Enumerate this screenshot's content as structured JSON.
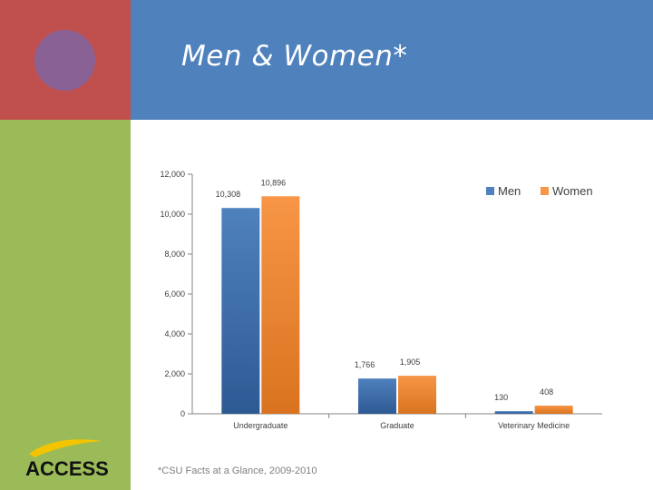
{
  "slide": {
    "title": "Men & Women*",
    "footnote": "*CSU Facts at a Glance, 2009-2010",
    "logo_text": "ACCESS"
  },
  "colors": {
    "red_block": "#c0504d",
    "blue_block": "#4f81bd",
    "green_block": "#9bbb59",
    "circle": "#8064a2",
    "men": "#4f81bd",
    "women": "#f79646",
    "logo_yellow": "#f5c400"
  },
  "chart_data": {
    "type": "bar",
    "categories": [
      "Undergraduate",
      "Graduate",
      "Veterinary Medicine"
    ],
    "series": [
      {
        "name": "Men",
        "values": [
          10308,
          1766,
          130
        ],
        "labels": [
          "10,308",
          "1,766",
          "130"
        ]
      },
      {
        "name": "Women",
        "values": [
          10896,
          1905,
          408
        ],
        "labels": [
          "10,896",
          "1,905",
          "408"
        ]
      }
    ],
    "yticks": [
      0,
      2000,
      4000,
      6000,
      8000,
      10000,
      12000
    ],
    "ytick_labels": [
      "0",
      "2,000",
      "4,000",
      "6,000",
      "8,000",
      "10,000",
      "12,000"
    ],
    "ylim": [
      0,
      12000
    ],
    "title": "",
    "xlabel": "",
    "ylabel": "",
    "legend_position": "top-right",
    "grid": false
  }
}
